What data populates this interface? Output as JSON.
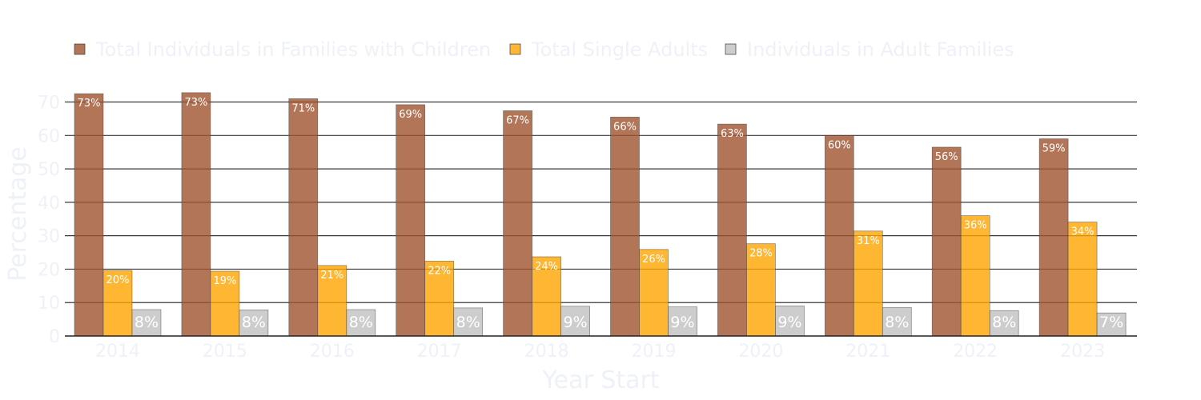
{
  "chart_data": {
    "type": "bar",
    "xlabel": "Year Start",
    "ylabel": "Percentage",
    "ylim": [
      0,
      73
    ],
    "yticks": [
      0,
      10,
      20,
      30,
      40,
      50,
      60,
      70
    ],
    "grid": true,
    "legend_position": "top-left",
    "categories": [
      "2014",
      "2015",
      "2016",
      "2017",
      "2018",
      "2019",
      "2020",
      "2021",
      "2022",
      "2023"
    ],
    "series": [
      {
        "name": "Total Individuals in Families with Children",
        "color": "#a0522d",
        "values": [
          72.5,
          72.8,
          71.0,
          69.2,
          67.4,
          65.5,
          63.4,
          60.0,
          56.5,
          59.0
        ],
        "labels": [
          "73%",
          "73%",
          "71%",
          "69%",
          "67%",
          "66%",
          "63%",
          "60%",
          "56%",
          "59%"
        ]
      },
      {
        "name": "Total Single Adults",
        "color": "#ffa500",
        "values": [
          19.6,
          19.4,
          21.1,
          22.4,
          23.7,
          25.9,
          27.6,
          31.4,
          36.0,
          34.1
        ],
        "labels": [
          "20%",
          "19%",
          "21%",
          "22%",
          "24%",
          "26%",
          "28%",
          "31%",
          "36%",
          "34%"
        ]
      },
      {
        "name": "Individuals in Adult Families",
        "color": "#c0c0c0",
        "values": [
          7.9,
          7.8,
          7.9,
          8.4,
          8.9,
          8.7,
          9.0,
          8.5,
          7.6,
          6.9
        ],
        "labels": [
          "8%",
          "8%",
          "8%",
          "8%",
          "9%",
          "9%",
          "9%",
          "8%",
          "8%",
          "7%"
        ]
      }
    ]
  }
}
